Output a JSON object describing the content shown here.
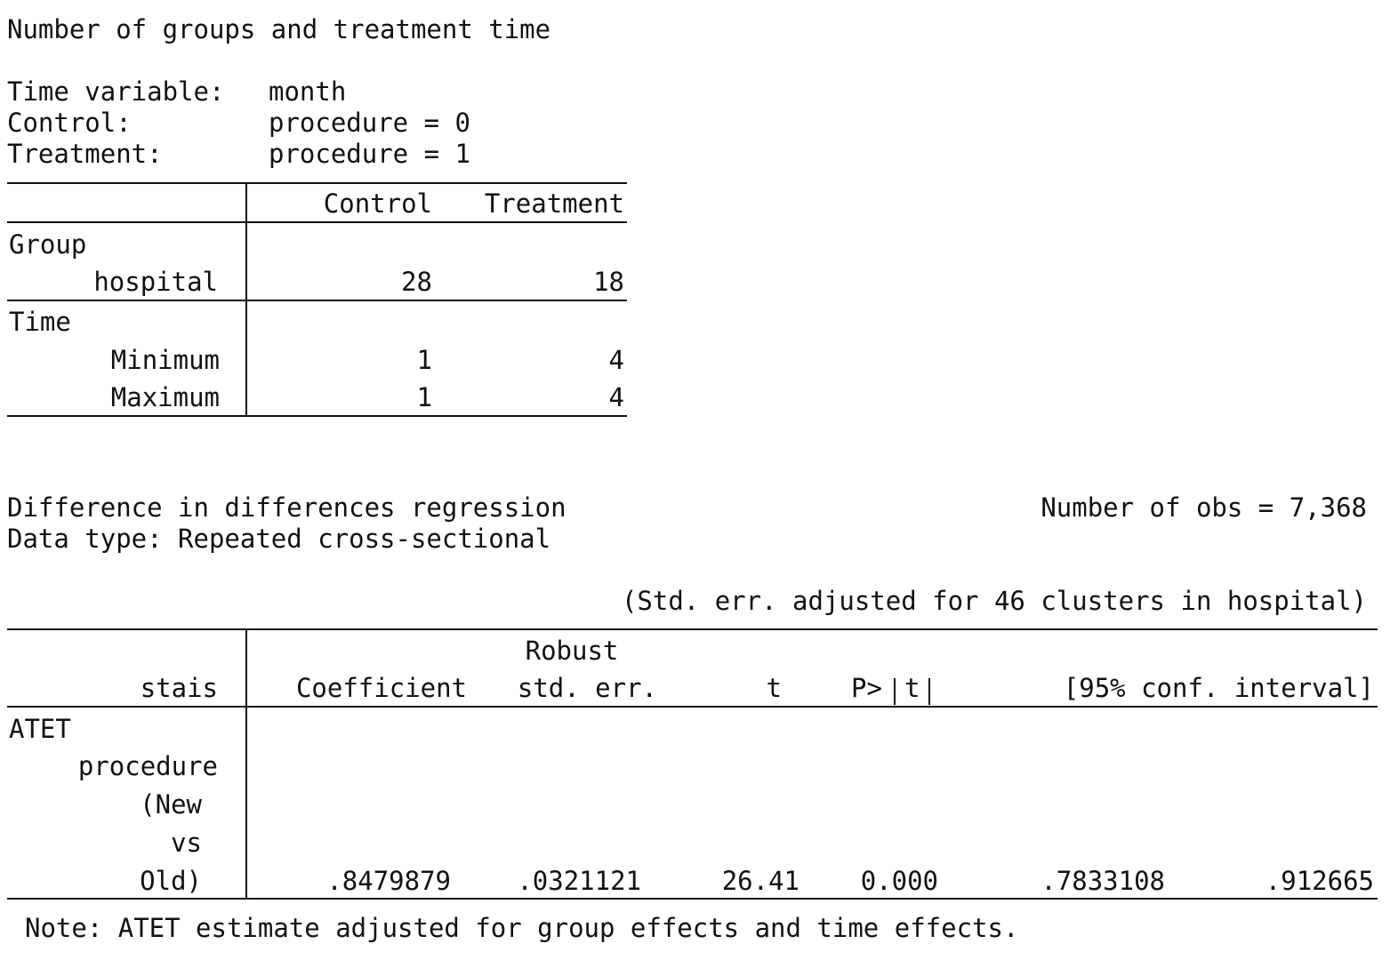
{
  "summary": {
    "title": "Number of groups and treatment time",
    "time_variable_label": "Time variable:",
    "time_variable_value": "month",
    "control_label": "Control:",
    "control_value": "procedure = 0",
    "treatment_label": "Treatment:",
    "treatment_value": "procedure = 1"
  },
  "groups_table": {
    "headers": [
      "Control",
      "Treatment"
    ],
    "group_section": "Group",
    "group_row": {
      "label": "hospital",
      "control": "28",
      "treatment": "18"
    },
    "time_section": "Time",
    "min_row": {
      "label": "Minimum",
      "control": "1",
      "treatment": "4"
    },
    "max_row": {
      "label": "Maximum",
      "control": "1",
      "treatment": "4"
    }
  },
  "regression": {
    "title": "Difference in differences regression",
    "data_type": "Data type: Repeated cross-sectional",
    "nobs": "Number of obs = 7,368",
    "se_note": "(Std. err. adjusted for 46 clusters in hospital)",
    "header": {
      "depvar": "stais",
      "coef": "Coefficient",
      "robust": "Robust",
      "se": "std. err.",
      "t": "t",
      "p_prefix": "P>",
      "p_t": "t",
      "ci": "[95% conf. interval]"
    },
    "section": "ATET",
    "variable": "procedure",
    "level": [
      "(New",
      "vs",
      "Old)"
    ],
    "row": {
      "coef": ".8479879",
      "se": ".0321121",
      "t": "26.41",
      "p": "0.000",
      "ci_low": ".7833108",
      "ci_high": ".912665"
    },
    "footnote": "Note: ATET estimate adjusted for group effects and time effects."
  }
}
